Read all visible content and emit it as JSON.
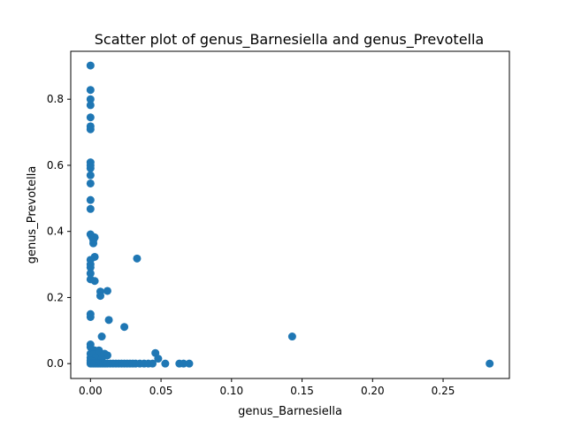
{
  "chart_data": {
    "type": "scatter",
    "title": "Scatter plot of genus_Barnesiella and genus_Prevotella",
    "xlabel": "genus_Barnesiella",
    "ylabel": "genus_Prevotella",
    "xlim": [
      -0.014,
      0.297
    ],
    "ylim": [
      -0.045,
      0.945
    ],
    "xticks": [
      0.0,
      0.05,
      0.1,
      0.15,
      0.2,
      0.25
    ],
    "xtick_labels": [
      "0.00",
      "0.05",
      "0.10",
      "0.15",
      "0.20",
      "0.25"
    ],
    "yticks": [
      0.0,
      0.2,
      0.4,
      0.6,
      0.8
    ],
    "ytick_labels": [
      "0.0",
      "0.2",
      "0.4",
      "0.6",
      "0.8"
    ],
    "grid": false,
    "marker_color": "#1f77b4",
    "points": [
      {
        "x": 0.0,
        "y": 0.902
      },
      {
        "x": 0.0,
        "y": 0.828
      },
      {
        "x": 0.0,
        "y": 0.8
      },
      {
        "x": 0.0,
        "y": 0.782
      },
      {
        "x": 0.0,
        "y": 0.745
      },
      {
        "x": 0.0,
        "y": 0.718
      },
      {
        "x": 0.0,
        "y": 0.709
      },
      {
        "x": 0.0,
        "y": 0.609
      },
      {
        "x": 0.0,
        "y": 0.6
      },
      {
        "x": 0.0,
        "y": 0.591
      },
      {
        "x": 0.0,
        "y": 0.57
      },
      {
        "x": 0.0,
        "y": 0.545
      },
      {
        "x": 0.0,
        "y": 0.495
      },
      {
        "x": 0.0,
        "y": 0.468
      },
      {
        "x": 0.0,
        "y": 0.391
      },
      {
        "x": 0.001,
        "y": 0.384
      },
      {
        "x": 0.002,
        "y": 0.373
      },
      {
        "x": 0.002,
        "y": 0.364
      },
      {
        "x": 0.003,
        "y": 0.382
      },
      {
        "x": 0.003,
        "y": 0.323
      },
      {
        "x": 0.0,
        "y": 0.314
      },
      {
        "x": 0.0,
        "y": 0.3
      },
      {
        "x": 0.0,
        "y": 0.291
      },
      {
        "x": 0.0,
        "y": 0.273
      },
      {
        "x": 0.0,
        "y": 0.255
      },
      {
        "x": 0.003,
        "y": 0.25
      },
      {
        "x": 0.007,
        "y": 0.218
      },
      {
        "x": 0.012,
        "y": 0.22
      },
      {
        "x": 0.007,
        "y": 0.205
      },
      {
        "x": 0.0,
        "y": 0.15
      },
      {
        "x": 0.0,
        "y": 0.141
      },
      {
        "x": 0.013,
        "y": 0.132
      },
      {
        "x": 0.024,
        "y": 0.111
      },
      {
        "x": 0.033,
        "y": 0.318
      },
      {
        "x": 0.008,
        "y": 0.082
      },
      {
        "x": 0.143,
        "y": 0.082
      },
      {
        "x": 0.0,
        "y": 0.058
      },
      {
        "x": 0.0,
        "y": 0.05
      },
      {
        "x": 0.003,
        "y": 0.04
      },
      {
        "x": 0.006,
        "y": 0.04
      },
      {
        "x": 0.0,
        "y": 0.03
      },
      {
        "x": 0.002,
        "y": 0.028
      },
      {
        "x": 0.006,
        "y": 0.03
      },
      {
        "x": 0.01,
        "y": 0.03
      },
      {
        "x": 0.012,
        "y": 0.025
      },
      {
        "x": 0.046,
        "y": 0.032
      },
      {
        "x": 0.048,
        "y": 0.015
      },
      {
        "x": 0.0,
        "y": 0.018
      },
      {
        "x": 0.004,
        "y": 0.018
      },
      {
        "x": 0.008,
        "y": 0.015
      },
      {
        "x": 0.0,
        "y": 0.01
      },
      {
        "x": 0.0,
        "y": 0.005
      },
      {
        "x": 0.001,
        "y": 0.008
      },
      {
        "x": 0.002,
        "y": 0.005
      },
      {
        "x": 0.0,
        "y": 0.0
      },
      {
        "x": 0.001,
        "y": 0.0
      },
      {
        "x": 0.002,
        "y": 0.0
      },
      {
        "x": 0.003,
        "y": 0.0
      },
      {
        "x": 0.004,
        "y": 0.0
      },
      {
        "x": 0.005,
        "y": 0.0
      },
      {
        "x": 0.006,
        "y": 0.0
      },
      {
        "x": 0.007,
        "y": 0.0
      },
      {
        "x": 0.008,
        "y": 0.0
      },
      {
        "x": 0.009,
        "y": 0.0
      },
      {
        "x": 0.01,
        "y": 0.0
      },
      {
        "x": 0.011,
        "y": 0.0
      },
      {
        "x": 0.012,
        "y": 0.0
      },
      {
        "x": 0.014,
        "y": 0.0
      },
      {
        "x": 0.016,
        "y": 0.0
      },
      {
        "x": 0.018,
        "y": 0.0
      },
      {
        "x": 0.02,
        "y": 0.0
      },
      {
        "x": 0.022,
        "y": 0.0
      },
      {
        "x": 0.024,
        "y": 0.0
      },
      {
        "x": 0.026,
        "y": 0.0
      },
      {
        "x": 0.028,
        "y": 0.0
      },
      {
        "x": 0.03,
        "y": 0.0
      },
      {
        "x": 0.032,
        "y": 0.0
      },
      {
        "x": 0.035,
        "y": 0.0
      },
      {
        "x": 0.038,
        "y": 0.0
      },
      {
        "x": 0.041,
        "y": 0.0
      },
      {
        "x": 0.044,
        "y": 0.0
      },
      {
        "x": 0.053,
        "y": 0.0
      },
      {
        "x": 0.063,
        "y": 0.0
      },
      {
        "x": 0.066,
        "y": 0.0
      },
      {
        "x": 0.07,
        "y": 0.0
      },
      {
        "x": 0.283,
        "y": 0.0
      }
    ]
  }
}
